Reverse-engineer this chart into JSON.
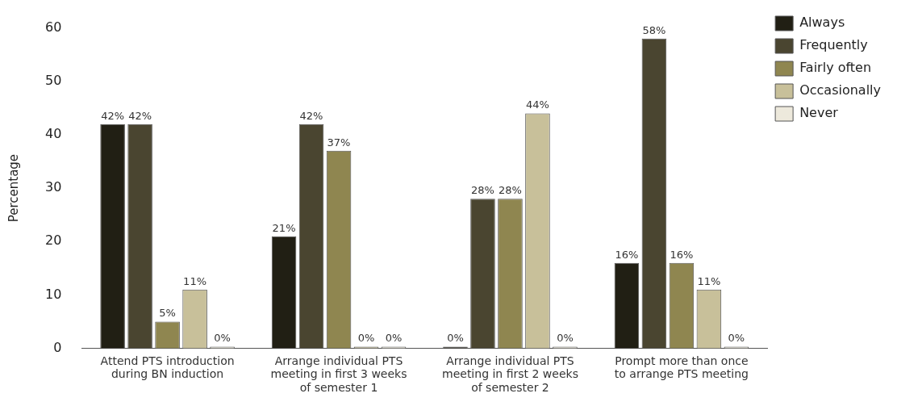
{
  "chart_data": {
    "type": "bar",
    "ylabel": "Percentage",
    "categories": [
      "Attend PTS introduction during BN induction",
      "Arrange individual PTS meeting in first 3 weeks of semester 1",
      "Arrange individual PTS meeting in first 2 weeks of semester 2",
      "Prompt more than once to arrange PTS meeting"
    ],
    "series": [
      {
        "name": "Always",
        "color": "#211f14",
        "values": [
          42,
          21,
          0,
          16
        ],
        "value_labels": [
          "42%",
          "21%",
          "0%",
          "16%"
        ]
      },
      {
        "name": "Frequently",
        "color": "#4a4530",
        "values": [
          42,
          42,
          28,
          58
        ],
        "value_labels": [
          "42%",
          "42%",
          "28%",
          "58%"
        ]
      },
      {
        "name": "Fairly often",
        "color": "#8f8650",
        "values": [
          5,
          37,
          28,
          16
        ],
        "value_labels": [
          "5%",
          "37%",
          "28%",
          "16%"
        ]
      },
      {
        "name": "Occasionally",
        "color": "#c8c09a",
        "values": [
          11,
          0,
          44,
          11
        ],
        "value_labels": [
          "11%",
          "0%",
          "44%",
          "11%"
        ]
      },
      {
        "name": "Never",
        "color": "#ede9dc",
        "values": [
          0,
          0,
          0,
          0
        ],
        "value_labels": [
          "0%",
          "0%",
          "0%",
          "0%"
        ]
      }
    ],
    "ylim": [
      0,
      60
    ],
    "yticks": [
      0,
      10,
      20,
      30,
      40,
      50,
      60
    ],
    "grid": false,
    "legend": "top right"
  }
}
